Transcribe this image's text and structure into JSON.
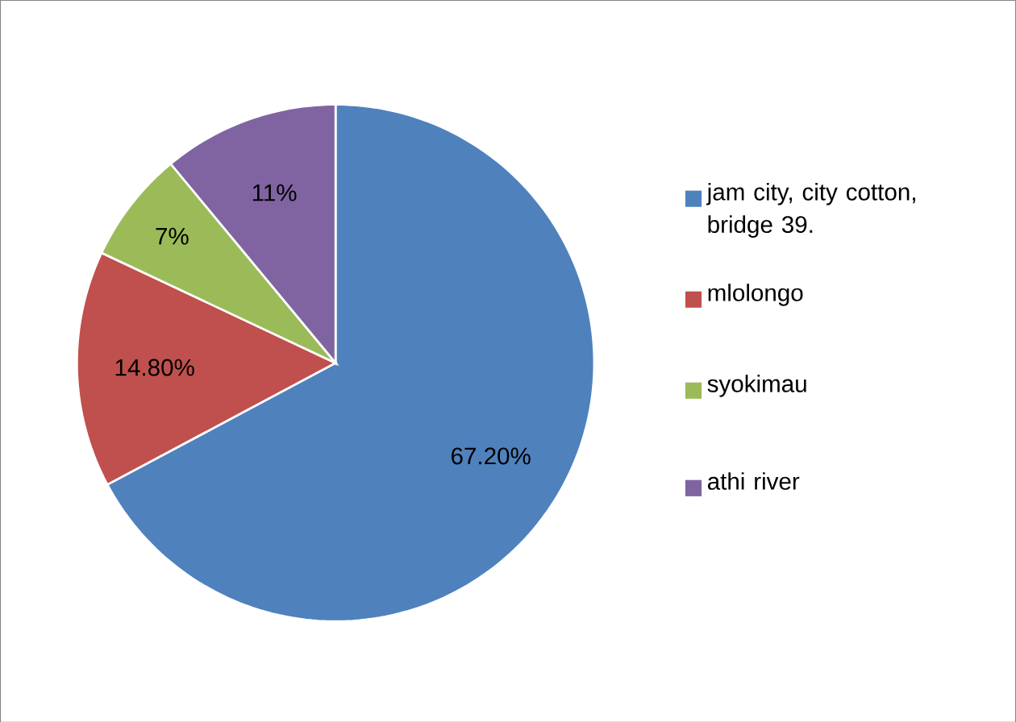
{
  "chart_data": {
    "type": "pie",
    "categories": [
      "jam city, city cotton, bridge 39.",
      "mlolongo",
      "syokimau",
      "athi river"
    ],
    "values": [
      67.2,
      14.8,
      7,
      11
    ],
    "value_labels": [
      "67.20%",
      "14.80%",
      "7%",
      "11%"
    ],
    "colors": [
      "#4f81bd",
      "#c0504d",
      "#9bbb59",
      "#8064a2"
    ],
    "legend": "right"
  }
}
